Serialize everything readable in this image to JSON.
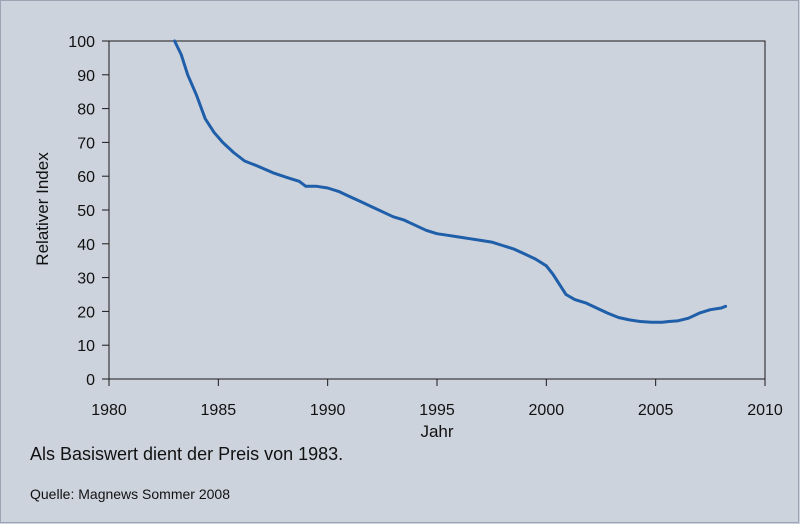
{
  "chart_data": {
    "type": "line",
    "title": "",
    "xlabel": "Jahr",
    "ylabel": "Relativer Index",
    "xlim": [
      1980,
      2010
    ],
    "ylim": [
      0,
      100
    ],
    "x_ticks": [
      1980,
      1985,
      1990,
      1995,
      2000,
      2005,
      2010
    ],
    "y_ticks": [
      0,
      10,
      20,
      30,
      40,
      50,
      60,
      70,
      80,
      90,
      100
    ],
    "grid": false,
    "series": [
      {
        "name": "Relativer Index",
        "color": "#1f5ea8",
        "x": [
          1983.0,
          1983.3,
          1983.6,
          1984.0,
          1984.4,
          1984.8,
          1985.2,
          1985.7,
          1986.2,
          1986.8,
          1987.5,
          1988.2,
          1988.7,
          1989.0,
          1989.5,
          1990.0,
          1990.5,
          1991.0,
          1991.5,
          1992.0,
          1992.5,
          1993.0,
          1993.5,
          1994.0,
          1994.5,
          1995.0,
          1995.5,
          1996.0,
          1996.5,
          1997.0,
          1997.5,
          1998.0,
          1998.5,
          1999.0,
          1999.5,
          2000.0,
          2000.3,
          2000.5,
          2000.7,
          2000.9,
          2001.3,
          2001.8,
          2002.3,
          2002.8,
          2003.3,
          2003.8,
          2004.3,
          2004.8,
          2005.3,
          2005.6,
          2006.0,
          2006.5,
          2007.0,
          2007.5,
          2008.0,
          2008.2
        ],
        "values": [
          100,
          96,
          90,
          84,
          77,
          73,
          70,
          67,
          64.5,
          63,
          61,
          59.5,
          58.5,
          57,
          57,
          56.5,
          55.5,
          54,
          52.5,
          51,
          49.5,
          48,
          47,
          45.5,
          44,
          43,
          42.5,
          42,
          41.5,
          41,
          40.5,
          39.5,
          38.5,
          37,
          35.5,
          33.5,
          31,
          29,
          27,
          25,
          23.5,
          22.5,
          21,
          19.5,
          18.2,
          17.5,
          17,
          16.8,
          16.8,
          17,
          17.2,
          18,
          19.5,
          20.5,
          21,
          21.5
        ]
      }
    ]
  },
  "note": "Als Basiswert dient der Preis von 1983.",
  "source": "Quelle: Magnews Sommer 2008"
}
